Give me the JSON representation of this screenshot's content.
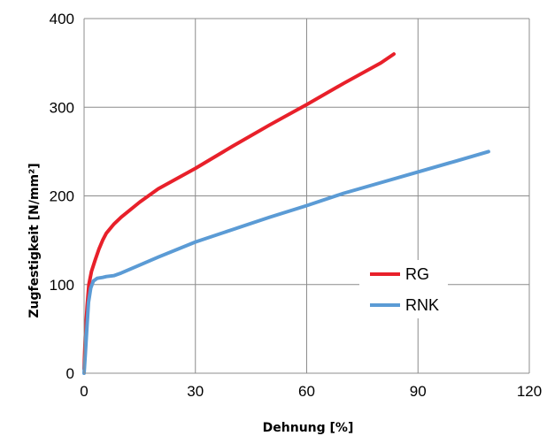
{
  "chart_data": {
    "type": "line",
    "title": "",
    "xlabel": "Dehnung [%]",
    "ylabel": "Zugfestigkeit   [N/mm²]",
    "xlim": [
      0,
      120
    ],
    "ylim": [
      0,
      400
    ],
    "xticks": [
      0,
      30,
      60,
      90,
      120
    ],
    "yticks": [
      0,
      100,
      200,
      300,
      400
    ],
    "xtick_labels": [
      "0",
      "30",
      "60",
      "90",
      "120"
    ],
    "ytick_labels": [
      "0",
      "100",
      "200",
      "300",
      "400"
    ],
    "grid": true,
    "legend_position": "center-right",
    "series": [
      {
        "name": "RG",
        "color": "#e8202a",
        "x": [
          0,
          0.3,
          0.8,
          1.3,
          2,
          3,
          4,
          5,
          6,
          8,
          10,
          15,
          20,
          30,
          40,
          50,
          60,
          70,
          80,
          83.5
        ],
        "y": [
          5,
          40,
          75,
          100,
          115,
          128,
          140,
          150,
          158,
          168,
          176,
          193,
          208,
          231,
          256,
          280,
          303,
          327,
          350,
          360
        ]
      },
      {
        "name": "RNK",
        "color": "#5b9bd5",
        "x": [
          0,
          0.3,
          0.8,
          1.2,
          1.8,
          2.5,
          3.5,
          5,
          6,
          8,
          10,
          15,
          20,
          30,
          40,
          50,
          60,
          70,
          80,
          90,
          100,
          109
        ],
        "y": [
          0,
          20,
          55,
          80,
          96,
          104,
          107,
          108,
          109,
          110,
          113,
          122,
          131,
          148,
          162,
          176,
          189,
          203,
          215,
          227,
          239,
          250
        ]
      }
    ]
  }
}
